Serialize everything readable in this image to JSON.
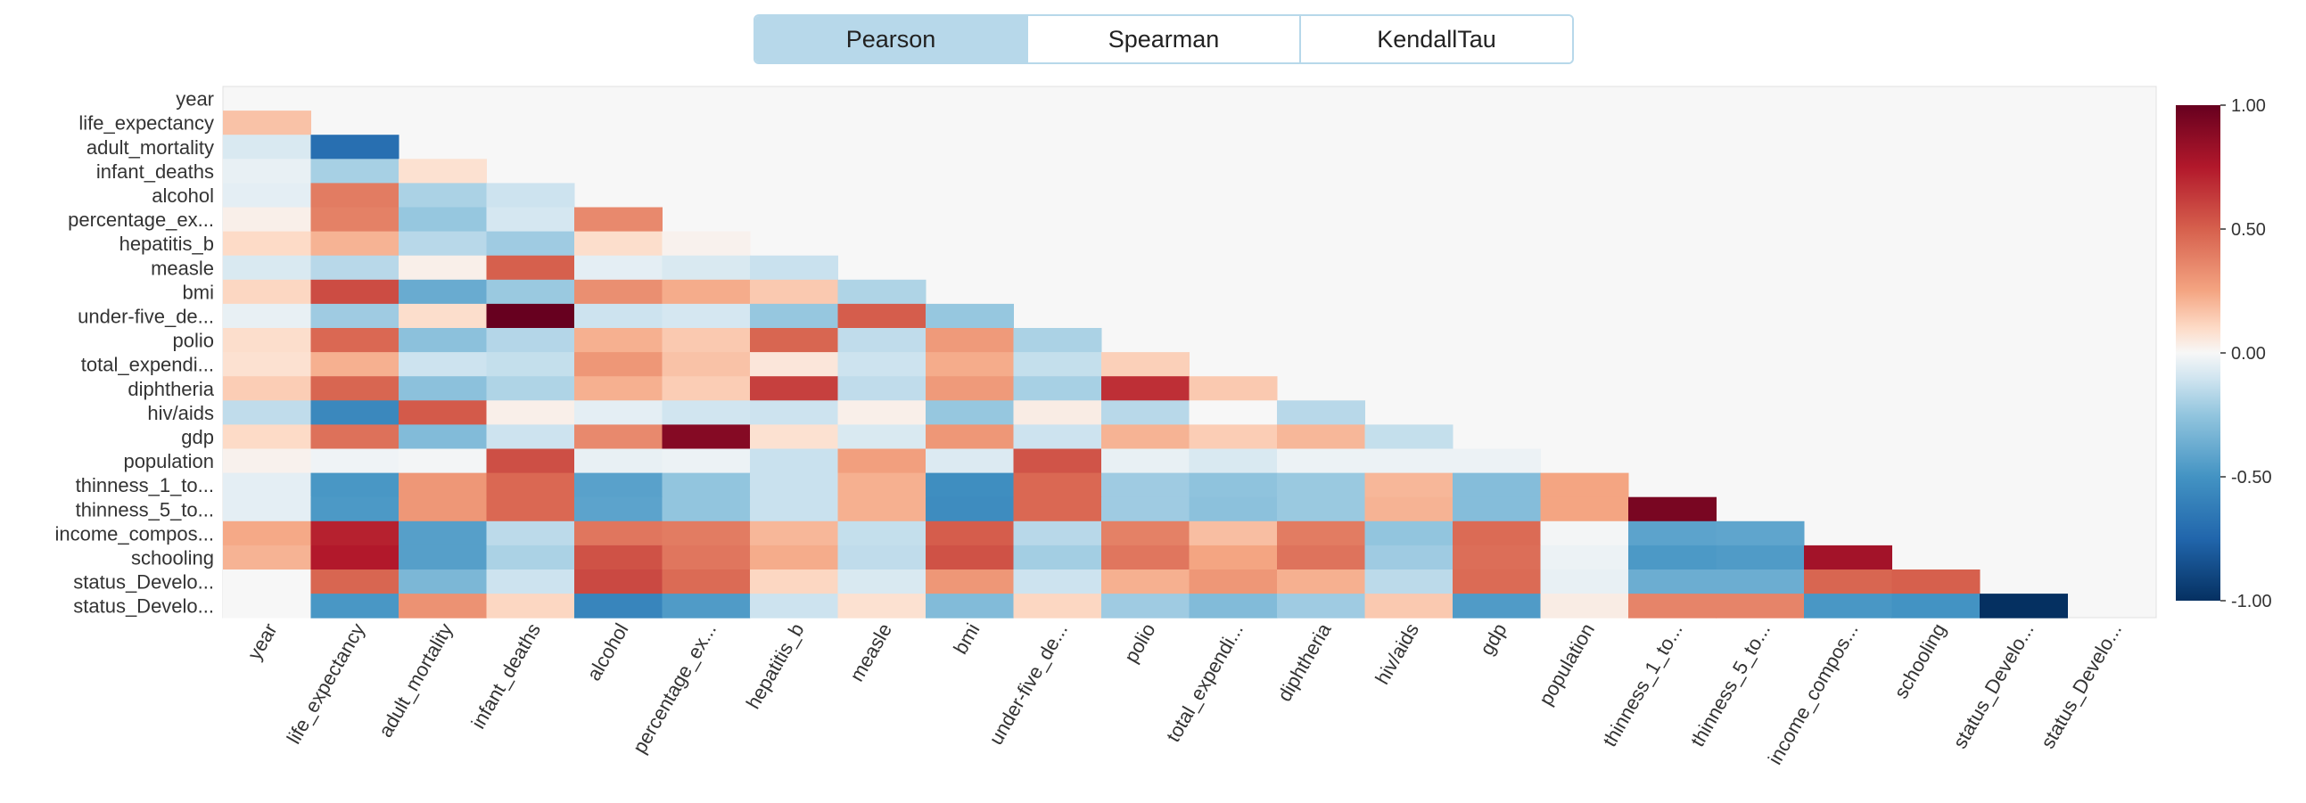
{
  "tabs": [
    {
      "label": "Pearson",
      "active": true
    },
    {
      "label": "Spearman",
      "active": false
    },
    {
      "label": "KendallTau",
      "active": false
    }
  ],
  "colors": {
    "tab_border": "#b7d8ea",
    "tab_active_bg": "#b7d8ea",
    "plot_bg": "#f7f7f7",
    "plot_border": "#e0e0e0",
    "colormap": "RdBu_r"
  },
  "chart_data": {
    "type": "heatmap",
    "title": "",
    "xlabel": "",
    "ylabel": "",
    "mask": "lower-triangle",
    "labels": [
      "year",
      "life_expectancy",
      "adult_mortality",
      "infant_deaths",
      "alcohol",
      "percentage_ex...",
      "hepatitis_b",
      "measle",
      "bmi",
      "under-five_de...",
      "polio",
      "total_expendi...",
      "diphtheria",
      "hiv/aids",
      "gdp",
      "population",
      "thinness_1_to...",
      "thinness_5_to...",
      "income_compos...",
      "schooling",
      "status_Develo...",
      "status_Develo..."
    ],
    "y_labels": [
      "year",
      "life_expectancy",
      "adult_mortality",
      "infant_deaths",
      "alcohol",
      "percentage_ex...",
      "hepatitis_b",
      "measle",
      "bmi",
      "under-five_de...",
      "polio",
      "total_expendi...",
      "diphtheria",
      "hiv/aids",
      "gdp",
      "population",
      "thinness_1_to...",
      "thinness_5_to...",
      "income_compos...",
      "schooling",
      "status_Develo...",
      "status_Develo..."
    ],
    "x_labels": [
      "year",
      "life_expectancy",
      "adult_mortality",
      "infant_deaths",
      "alcohol",
      "percentage_ex...",
      "hepatitis_b",
      "measle",
      "bmi",
      "under-five_de...",
      "polio",
      "total_expendi...",
      "diphtheria",
      "hiv/aids",
      "gdp",
      "population",
      "thinness_1_to...",
      "thinness_5_to...",
      "income_compos...",
      "schooling",
      "status_Develo...",
      "status_Develo..."
    ],
    "values": [
      [],
      [
        0.17
      ],
      [
        -0.08,
        -0.7
      ],
      [
        -0.04,
        -0.2,
        0.08
      ],
      [
        -0.05,
        0.4,
        -0.19,
        -0.11
      ],
      [
        0.03,
        0.38,
        -0.24,
        -0.09,
        0.35
      ],
      [
        0.1,
        0.21,
        -0.16,
        -0.22,
        0.09,
        0.02
      ],
      [
        -0.08,
        -0.16,
        0.03,
        0.5,
        -0.05,
        -0.08,
        -0.12
      ],
      [
        0.11,
        0.57,
        -0.38,
        -0.23,
        0.33,
        0.23,
        0.15,
        -0.18
      ],
      [
        -0.04,
        -0.22,
        0.09,
        1.0,
        -0.11,
        -0.09,
        -0.24,
        0.51,
        -0.24
      ],
      [
        0.09,
        0.47,
        -0.27,
        -0.17,
        0.22,
        0.15,
        0.48,
        -0.14,
        0.29,
        -0.19
      ],
      [
        0.08,
        0.22,
        -0.11,
        -0.13,
        0.3,
        0.17,
        0.06,
        -0.11,
        0.23,
        -0.13,
        0.13
      ],
      [
        0.14,
        0.48,
        -0.27,
        -0.18,
        0.22,
        0.14,
        0.61,
        -0.14,
        0.29,
        -0.2,
        0.67,
        0.15
      ],
      [
        -0.14,
        -0.56,
        0.52,
        0.03,
        -0.05,
        -0.1,
        -0.11,
        0.03,
        -0.24,
        0.04,
        -0.16,
        0.0,
        -0.16
      ],
      [
        0.1,
        0.44,
        -0.3,
        -0.11,
        0.35,
        0.9,
        0.08,
        -0.08,
        0.3,
        -0.11,
        0.21,
        0.14,
        0.2,
        -0.13
      ],
      [
        0.02,
        -0.02,
        -0.01,
        0.56,
        -0.04,
        -0.03,
        -0.12,
        0.27,
        -0.07,
        0.54,
        -0.04,
        -0.08,
        -0.03,
        -0.03,
        -0.03
      ],
      [
        -0.05,
        -0.48,
        0.3,
        0.47,
        -0.43,
        -0.25,
        -0.12,
        0.22,
        -0.53,
        0.47,
        -0.22,
        -0.26,
        -0.23,
        0.2,
        -0.29,
        0.25
      ],
      [
        -0.05,
        -0.47,
        0.3,
        0.47,
        -0.42,
        -0.25,
        -0.12,
        0.22,
        -0.54,
        0.47,
        -0.22,
        -0.27,
        -0.23,
        0.21,
        -0.29,
        0.25,
        0.94
      ],
      [
        0.24,
        0.72,
        -0.44,
        -0.15,
        0.42,
        0.4,
        0.2,
        -0.13,
        0.51,
        -0.16,
        0.38,
        0.18,
        0.4,
        -0.25,
        0.46,
        -0.01,
        -0.42,
        -0.41
      ],
      [
        0.21,
        0.75,
        -0.44,
        -0.19,
        0.55,
        0.42,
        0.23,
        -0.14,
        0.55,
        -0.21,
        0.42,
        0.25,
        0.43,
        -0.22,
        0.45,
        -0.03,
        -0.47,
        -0.46,
        0.8
      ],
      [
        0.0,
        0.48,
        -0.32,
        -0.11,
        0.58,
        0.46,
        0.11,
        -0.08,
        0.3,
        -0.11,
        0.22,
        0.3,
        0.22,
        -0.15,
        0.46,
        -0.04,
        -0.37,
        -0.37,
        0.48,
        0.5
      ],
      [
        0.0,
        -0.48,
        0.32,
        0.11,
        -0.58,
        -0.46,
        -0.11,
        0.08,
        -0.3,
        0.11,
        -0.22,
        -0.3,
        -0.22,
        0.15,
        -0.46,
        0.04,
        0.37,
        0.37,
        -0.48,
        -0.5,
        -1.0
      ]
    ],
    "colorbar": {
      "min": -1.0,
      "max": 1.0,
      "ticks": [
        {
          "value": 1.0,
          "label": "1.00"
        },
        {
          "value": 0.5,
          "label": "0.50"
        },
        {
          "value": 0.0,
          "label": "0.00"
        },
        {
          "value": -0.5,
          "label": "-0.50"
        },
        {
          "value": -1.0,
          "label": "-1.00"
        }
      ]
    },
    "grid": false,
    "legend": "right"
  }
}
